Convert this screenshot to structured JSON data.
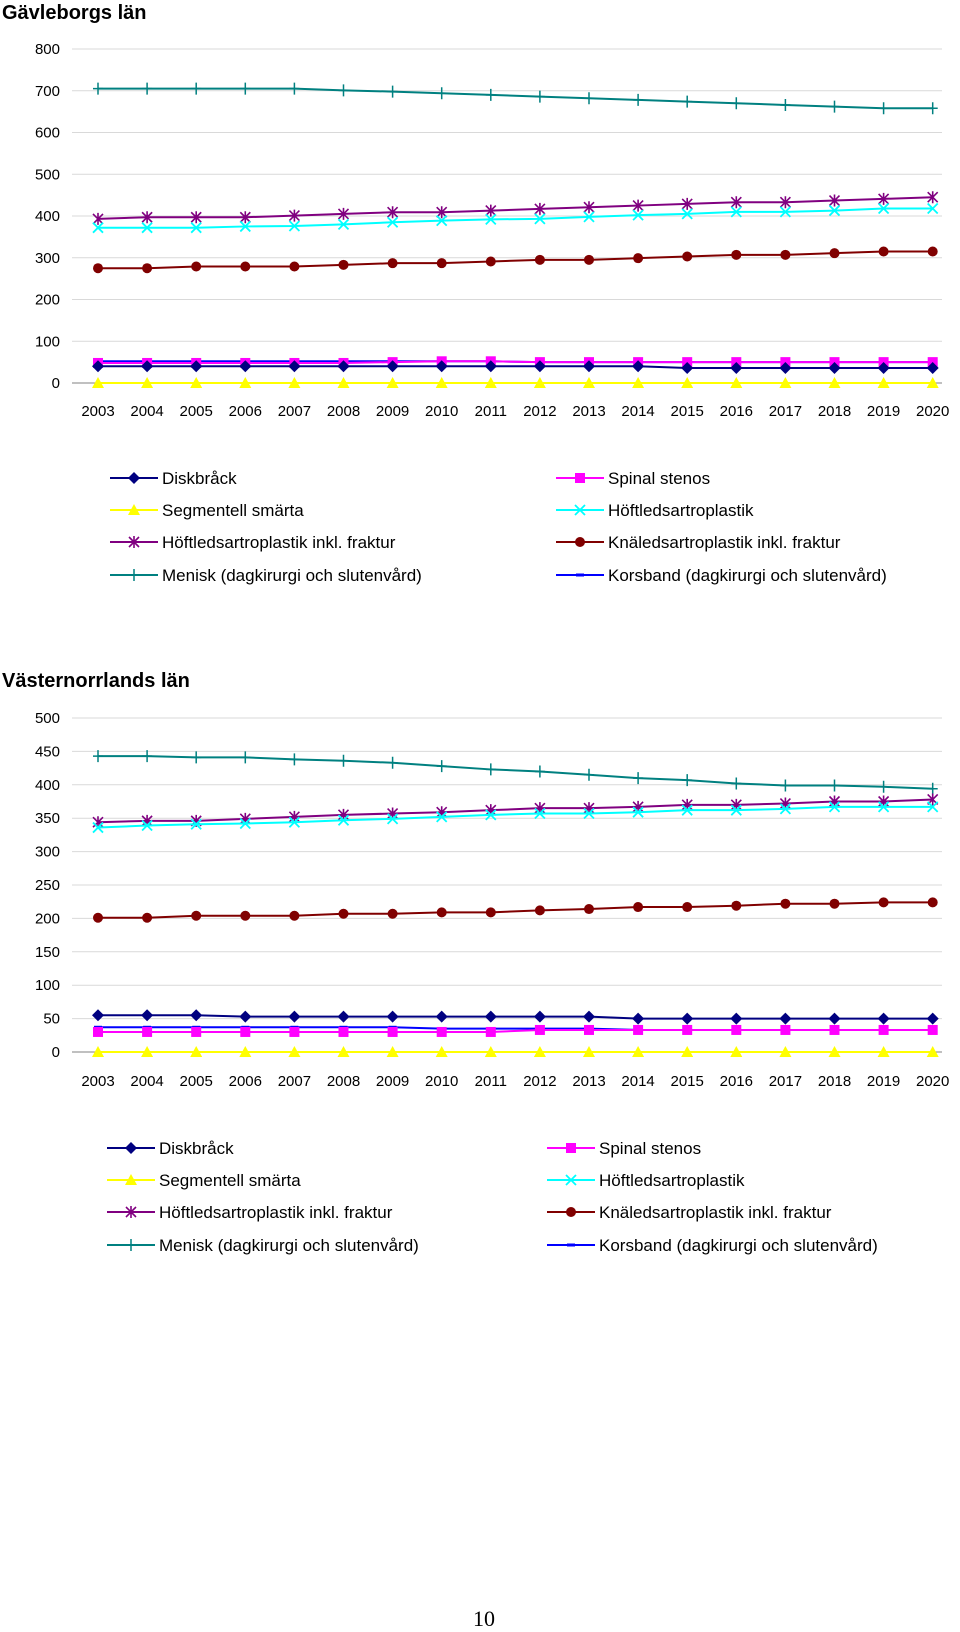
{
  "page": {
    "number": "10"
  },
  "chart_data": [
    {
      "type": "line",
      "title": "Gävleborgs län",
      "xlabel": "",
      "ylabel": "",
      "ylim": [
        0,
        800
      ],
      "yticks": [
        0,
        100,
        200,
        300,
        400,
        500,
        600,
        700,
        800
      ],
      "grid": true,
      "legend": "bottom",
      "categories": [
        "2003",
        "2004",
        "2005",
        "2006",
        "2007",
        "2008",
        "2009",
        "2010",
        "2011",
        "2012",
        "2013",
        "2014",
        "2015",
        "2016",
        "2017",
        "2018",
        "2019",
        "2020"
      ],
      "series": [
        {
          "name": "Diskbråck",
          "color": "#000080",
          "marker": "diamond",
          "values": [
            40,
            40,
            40,
            40,
            40,
            40,
            40,
            40,
            40,
            40,
            40,
            40,
            36,
            36,
            36,
            36,
            36,
            36
          ]
        },
        {
          "name": "Spinal stenos",
          "color": "#ff00ff",
          "marker": "square",
          "values": [
            48,
            48,
            48,
            48,
            48,
            48,
            50,
            52,
            52,
            50,
            50,
            50,
            50,
            50,
            50,
            50,
            50,
            50
          ]
        },
        {
          "name": "Segmentell smärta",
          "color": "#ffff00",
          "marker": "triangle",
          "values": [
            0,
            0,
            0,
            0,
            0,
            0,
            0,
            0,
            0,
            0,
            0,
            0,
            0,
            0,
            0,
            0,
            0,
            0
          ]
        },
        {
          "name": "Höftledsartroplastik",
          "color": "#00ffff",
          "marker": "x",
          "values": [
            372,
            372,
            372,
            375,
            376,
            380,
            385,
            389,
            392,
            393,
            398,
            402,
            405,
            410,
            410,
            413,
            418,
            418
          ]
        },
        {
          "name": "Höftledsartroplastik inkl. fraktur",
          "color": "#800080",
          "marker": "star",
          "values": [
            393,
            397,
            397,
            397,
            401,
            405,
            409,
            409,
            413,
            417,
            421,
            425,
            429,
            433,
            433,
            437,
            441,
            445
          ]
        },
        {
          "name": "Knäledsartroplastik inkl. fraktur",
          "color": "#800000",
          "marker": "circle",
          "values": [
            275,
            275,
            279,
            279,
            279,
            283,
            287,
            287,
            291,
            295,
            295,
            299,
            303,
            307,
            307,
            311,
            315,
            315
          ]
        },
        {
          "name": "Menisk (dagkirurgi och slutenvård)",
          "color": "#008080",
          "marker": "plus",
          "values": [
            705,
            705,
            705,
            705,
            705,
            701,
            698,
            694,
            690,
            686,
            682,
            678,
            674,
            670,
            666,
            662,
            658,
            658
          ]
        },
        {
          "name": "Korsband (dagkirurgi och slutenvård)",
          "color": "#0000ff",
          "marker": "dash",
          "values": [
            52,
            52,
            52,
            52,
            52,
            52,
            52,
            52,
            52,
            50,
            50,
            50,
            50,
            50,
            50,
            50,
            50,
            50
          ]
        }
      ]
    },
    {
      "type": "line",
      "title": "Västernorrlands län",
      "xlabel": "",
      "ylabel": "",
      "ylim": [
        0,
        500
      ],
      "yticks": [
        0,
        50,
        100,
        150,
        200,
        250,
        300,
        350,
        400,
        450,
        500
      ],
      "grid": true,
      "legend": "bottom",
      "categories": [
        "2003",
        "2004",
        "2005",
        "2006",
        "2007",
        "2008",
        "2009",
        "2010",
        "2011",
        "2012",
        "2013",
        "2014",
        "2015",
        "2016",
        "2017",
        "2018",
        "2019",
        "2020"
      ],
      "series": [
        {
          "name": "Diskbråck",
          "color": "#000080",
          "marker": "diamond",
          "values": [
            55,
            55,
            55,
            53,
            53,
            53,
            53,
            53,
            53,
            53,
            53,
            50,
            50,
            50,
            50,
            50,
            50,
            50
          ]
        },
        {
          "name": "Spinal stenos",
          "color": "#ff00ff",
          "marker": "square",
          "values": [
            30,
            30,
            30,
            30,
            30,
            30,
            30,
            30,
            30,
            33,
            33,
            33,
            33,
            33,
            33,
            33,
            33,
            33
          ]
        },
        {
          "name": "Segmentell smärta",
          "color": "#ffff00",
          "marker": "triangle",
          "values": [
            0,
            0,
            0,
            0,
            0,
            0,
            0,
            0,
            0,
            0,
            0,
            0,
            0,
            0,
            0,
            0,
            0,
            0
          ]
        },
        {
          "name": "Höftledsartroplastik",
          "color": "#00ffff",
          "marker": "x",
          "values": [
            336,
            339,
            341,
            342,
            344,
            347,
            349,
            352,
            355,
            357,
            357,
            359,
            362,
            362,
            364,
            367,
            367,
            367
          ]
        },
        {
          "name": "Höftledsartroplastik inkl. fraktur",
          "color": "#800080",
          "marker": "star",
          "values": [
            344,
            346,
            346,
            349,
            352,
            355,
            357,
            359,
            362,
            365,
            365,
            367,
            370,
            370,
            372,
            375,
            375,
            378
          ]
        },
        {
          "name": "Knäledsartroplastik inkl. fraktur",
          "color": "#800000",
          "marker": "circle",
          "values": [
            201,
            201,
            204,
            204,
            204,
            207,
            207,
            209,
            209,
            212,
            214,
            217,
            217,
            219,
            222,
            222,
            224,
            224
          ]
        },
        {
          "name": "Menisk (dagkirurgi och slutenvård)",
          "color": "#008080",
          "marker": "plus",
          "values": [
            443,
            443,
            441,
            441,
            438,
            436,
            433,
            428,
            423,
            420,
            415,
            410,
            407,
            402,
            399,
            399,
            397,
            394
          ]
        },
        {
          "name": "Korsband (dagkirurgi och slutenvård)",
          "color": "#0000ff",
          "marker": "dash",
          "values": [
            37,
            37,
            37,
            37,
            37,
            37,
            37,
            35,
            35,
            35,
            35,
            33,
            33,
            33,
            33,
            33,
            33,
            33
          ]
        }
      ]
    }
  ]
}
